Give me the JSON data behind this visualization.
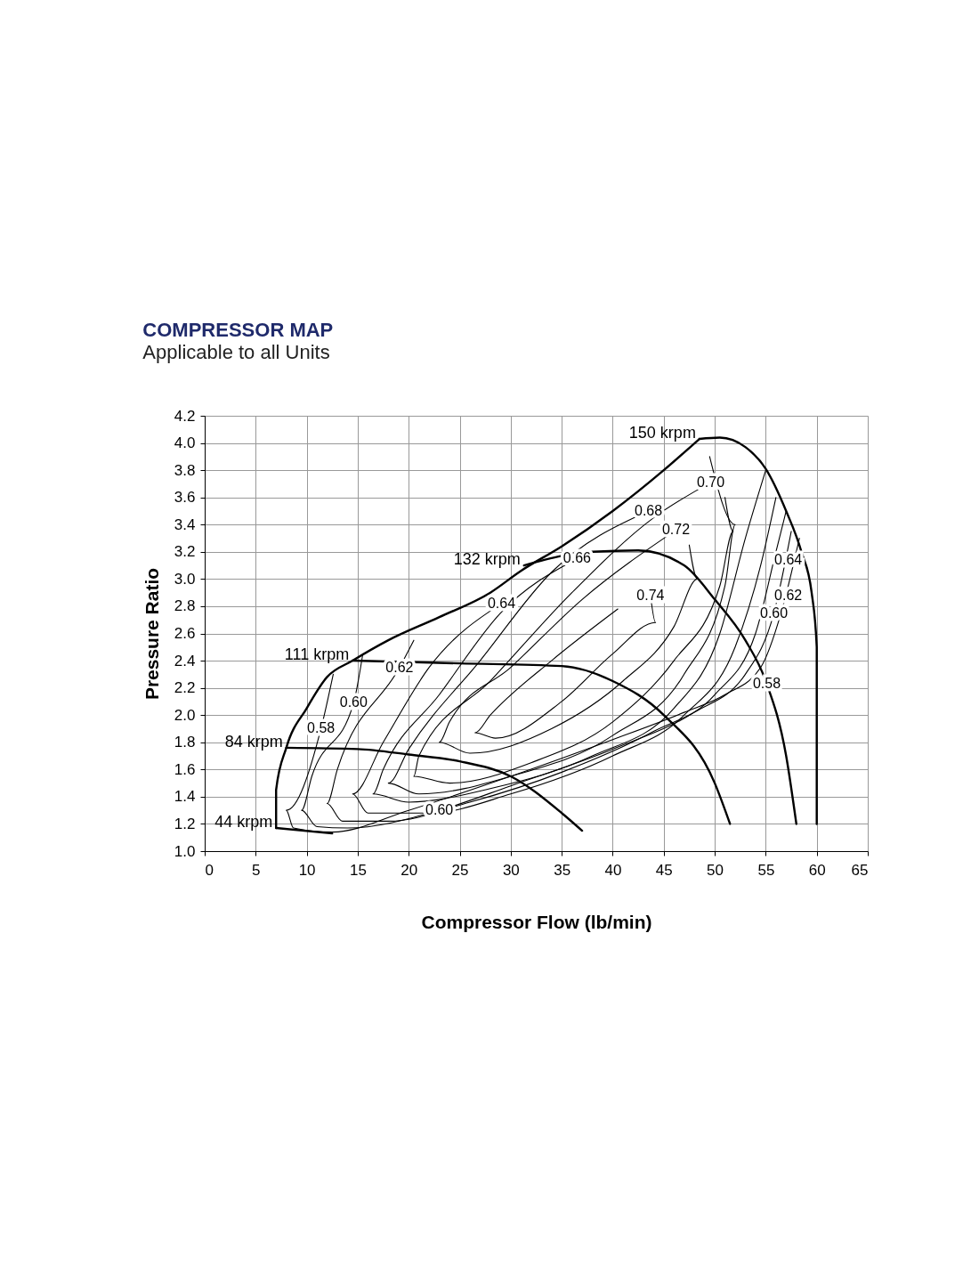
{
  "chart_data": {
    "type": "line",
    "title": "COMPRESSOR MAP",
    "subtitle": "Applicable to all Units",
    "xlabel": "Compressor Flow (lb/min)",
    "ylabel": "Pressure Ratio",
    "xlim": [
      0,
      65
    ],
    "xticks": [
      0,
      5,
      10,
      15,
      20,
      25,
      30,
      35,
      40,
      45,
      50,
      55,
      60,
      65
    ],
    "ylim": [
      1.0,
      4.2
    ],
    "yticks": [
      {
        "value": 1.0,
        "label": "1.0"
      },
      {
        "value": 1.2,
        "label": "1.2"
      },
      {
        "value": 1.4,
        "label": "1.4"
      },
      {
        "value": 1.6,
        "label": "1.6"
      },
      {
        "value": 1.8,
        "label": "1.8"
      },
      {
        "value": 2.0,
        "label": "2.0"
      },
      {
        "value": 2.2,
        "label": "2.2"
      },
      {
        "value": 2.4,
        "label": "2.4"
      },
      {
        "value": 2.6,
        "label": "2.6"
      },
      {
        "value": 2.8,
        "label": "2.8"
      },
      {
        "value": 3.0,
        "label": "3.0"
      },
      {
        "value": 3.2,
        "label": "3.2"
      },
      {
        "value": 3.4,
        "label": "3.4"
      },
      {
        "value": 3.6,
        "label": "3.6"
      },
      {
        "value": 3.8,
        "label": "3.8"
      },
      {
        "value": 4.0,
        "label": "4.0"
      },
      {
        "value": 4.2,
        "label": "4.2"
      }
    ],
    "grid": true,
    "legend": false,
    "marker": "none",
    "line_style": "solid",
    "series": [
      {
        "color": "#000000",
        "x": [
          7,
          7,
          8,
          10,
          12,
          14.5,
          18,
          23,
          28,
          31,
          35,
          40,
          45,
          48.5
        ],
        "values": [
          1.17,
          1.45,
          1.76,
          2.05,
          2.28,
          2.4,
          2.55,
          2.72,
          2.9,
          3.06,
          3.24,
          3.5,
          3.8,
          4.03
        ]
      },
      {
        "name": "44 krpm",
        "color": "#000000",
        "x": [
          7,
          12.5
        ],
        "values": [
          1.17,
          1.13
        ]
      },
      {
        "name": "84 krpm",
        "color": "#000000",
        "x": [
          8,
          15,
          20,
          25,
          30,
          35,
          37
        ],
        "values": [
          1.76,
          1.75,
          1.71,
          1.66,
          1.55,
          1.28,
          1.15
        ]
      },
      {
        "name": "111 krpm",
        "color": "#000000",
        "x": [
          14.5,
          25,
          35,
          40,
          45,
          50,
          51.5
        ],
        "values": [
          2.4,
          2.38,
          2.36,
          2.25,
          2.0,
          1.5,
          1.2
        ]
      },
      {
        "name": "132 krpm",
        "color": "#000000",
        "x": [
          31.3,
          35,
          38,
          42.5,
          47,
          50,
          53,
          55,
          57,
          58
        ],
        "values": [
          3.1,
          3.17,
          3.2,
          3.21,
          3.1,
          2.85,
          2.55,
          2.25,
          1.7,
          1.2
        ]
      },
      {
        "name": "150 krpm",
        "color": "#000000",
        "x": [
          48.5,
          50.5,
          53,
          55,
          57,
          58.5,
          59.5,
          60,
          60
        ],
        "values": [
          4.03,
          4.04,
          3.97,
          3.81,
          3.5,
          3.2,
          2.9,
          2.5,
          1.2
        ]
      },
      {
        "color": "#000000",
        "x": [
          12.6,
          11.4,
          8.0,
          8.7,
          12.5,
          20,
          30,
          40,
          47,
          51,
          54.5,
          56.5,
          58.3
        ],
        "values": [
          2.3,
          1.9,
          1.3,
          1.17,
          1.14,
          1.3,
          1.55,
          1.82,
          2.02,
          2.15,
          2.35,
          2.75,
          3.3
        ]
      },
      {
        "color": "#000000",
        "x": [
          15.5,
          14.6,
          10.5,
          9.5,
          11,
          14,
          23.0,
          30,
          40,
          48,
          53,
          55.8,
          57.5
        ],
        "values": [
          2.45,
          2.09,
          1.55,
          1.3,
          1.18,
          1.17,
          1.3,
          1.48,
          1.75,
          2.02,
          2.3,
          2.75,
          3.35
        ]
      },
      {
        "color": "#000000",
        "x": [
          20.5,
          19.1,
          13,
          12,
          13.5,
          18,
          26,
          35,
          44,
          50,
          54,
          56,
          57
        ],
        "values": [
          2.55,
          2.35,
          1.6,
          1.35,
          1.22,
          1.22,
          1.36,
          1.58,
          1.88,
          2.15,
          2.6,
          3.2,
          3.5
        ]
      },
      {
        "color": "#000000",
        "x": [
          29.1,
          22,
          17.5,
          14.5,
          16,
          22,
          30,
          40,
          47,
          52,
          54.5,
          56
        ],
        "values": [
          2.82,
          2.35,
          1.8,
          1.42,
          1.28,
          1.28,
          1.42,
          1.7,
          2.0,
          2.5,
          3.1,
          3.6
        ]
      },
      {
        "color": "#000000",
        "x": [
          36.5,
          29,
          23,
          17.5,
          16.5,
          20,
          28,
          38,
          46,
          50.5,
          53,
          55
        ],
        "values": [
          3.15,
          2.75,
          2.15,
          1.6,
          1.42,
          1.36,
          1.46,
          1.7,
          2.05,
          2.6,
          3.3,
          3.8
        ]
      },
      {
        "color": "#000000",
        "x": [
          43.5,
          34,
          27,
          20,
          18,
          21,
          30,
          40,
          47,
          51,
          52,
          49.5
        ],
        "values": [
          3.5,
          3.05,
          2.4,
          1.75,
          1.5,
          1.42,
          1.55,
          1.85,
          2.3,
          2.95,
          3.4,
          3.9
        ]
      },
      {
        "color": "#000000",
        "x": [
          49.6,
          44,
          36,
          28,
          21,
          20.5,
          24,
          32,
          40,
          46,
          50.5,
          51.8,
          51
        ],
        "values": [
          3.71,
          3.45,
          2.9,
          2.25,
          1.7,
          1.55,
          1.5,
          1.65,
          1.95,
          2.4,
          2.95,
          3.35,
          3.6
        ]
      },
      {
        "color": "#000000",
        "x": [
          46.2,
          37,
          30,
          24,
          23,
          26,
          34,
          41,
          46,
          48.3,
          47.5
        ],
        "values": [
          3.36,
          2.85,
          2.35,
          1.95,
          1.8,
          1.72,
          1.9,
          2.25,
          2.65,
          3.0,
          3.25
        ]
      },
      {
        "color": "#000000",
        "x": [
          40.5,
          34,
          28,
          26.5,
          28.5,
          35,
          40,
          44.2,
          43.7
        ],
        "values": [
          2.78,
          2.4,
          2.0,
          1.87,
          1.83,
          2.1,
          2.45,
          2.68,
          2.88
        ]
      }
    ],
    "annotations": [
      {
        "text": "0.58",
        "x": 11.4,
        "y": 1.9
      },
      {
        "text": "0.60",
        "x": 14.6,
        "y": 2.09
      },
      {
        "text": "0.62",
        "x": 19.1,
        "y": 2.35
      },
      {
        "text": "0.64",
        "x": 29.1,
        "y": 2.82
      },
      {
        "text": "0.66",
        "x": 36.5,
        "y": 3.15
      },
      {
        "text": "0.68",
        "x": 43.5,
        "y": 3.5
      },
      {
        "text": "0.70",
        "x": 49.6,
        "y": 3.71
      },
      {
        "text": "0.72",
        "x": 46.2,
        "y": 3.36
      },
      {
        "text": "0.74",
        "x": 43.7,
        "y": 2.88
      },
      {
        "text": "0.60",
        "x": 23.0,
        "y": 1.3
      },
      {
        "text": "0.64",
        "x": 57.2,
        "y": 3.14
      },
      {
        "text": "0.62",
        "x": 57.2,
        "y": 2.88
      },
      {
        "text": "0.60",
        "x": 55.8,
        "y": 2.75
      },
      {
        "text": "0.58",
        "x": 55.1,
        "y": 2.23
      }
    ]
  }
}
